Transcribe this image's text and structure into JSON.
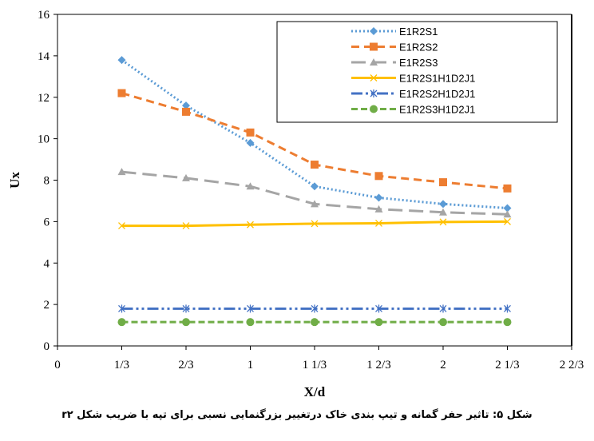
{
  "chart_data": {
    "type": "line",
    "xlabel": "X/d",
    "ylabel": "Ux",
    "xlim": [
      0,
      2.6667
    ],
    "ylim": [
      0,
      16
    ],
    "x_ticks": [
      0,
      0.3333,
      0.6667,
      1,
      1.3333,
      1.6667,
      2,
      2.3333,
      2.6667
    ],
    "x_tick_labels": [
      "0",
      "1/3",
      "2/3",
      "1",
      "1 1/3",
      "1 2/3",
      "2",
      "2 1/3",
      "2 2/3"
    ],
    "y_ticks": [
      0,
      2,
      4,
      6,
      8,
      10,
      12,
      14,
      16
    ],
    "y_tick_labels": [
      "0",
      "2",
      "4",
      "6",
      "8",
      "10",
      "12",
      "14",
      "16"
    ],
    "grid": false,
    "legend_position": "top-right",
    "x": [
      0.3333,
      0.6667,
      1,
      1.3333,
      1.6667,
      2,
      2.3333
    ],
    "series": [
      {
        "name": "E1R2S1",
        "color": "#5B9BD5",
        "dash": "2,3",
        "marker": "diamond",
        "values": [
          13.8,
          11.6,
          9.8,
          7.7,
          7.15,
          6.85,
          6.65
        ]
      },
      {
        "name": "E1R2S2",
        "color": "#ED7D31",
        "dash": "10,6",
        "marker": "square",
        "values": [
          12.2,
          11.3,
          10.3,
          8.75,
          8.2,
          7.9,
          7.6
        ]
      },
      {
        "name": "E1R2S3",
        "color": "#A5A5A5",
        "dash": "18,8",
        "marker": "triangle",
        "values": [
          8.4,
          8.1,
          7.7,
          6.85,
          6.6,
          6.45,
          6.35
        ]
      },
      {
        "name": "E1R2S1H1D2J1",
        "color": "#FFC000",
        "dash": "",
        "marker": "x",
        "values": [
          5.8,
          5.8,
          5.85,
          5.9,
          5.92,
          5.98,
          6.0
        ]
      },
      {
        "name": "E1R2S2H1D2J1",
        "color": "#4472C4",
        "dash": "14,4,3,4,3,4",
        "marker": "star",
        "values": [
          1.8,
          1.8,
          1.8,
          1.8,
          1.8,
          1.8,
          1.8
        ]
      },
      {
        "name": "E1R2S3H1D2J1",
        "color": "#70AD47",
        "dash": "8,4",
        "marker": "circle",
        "values": [
          1.15,
          1.15,
          1.15,
          1.15,
          1.15,
          1.15,
          1.15
        ]
      }
    ]
  },
  "caption": "شکل ۵: تاثیر حفر گمانه و تیپ بندی خاک درتغییر بزرگنمایی نسبی برای تپه با ضریب شکل r۲"
}
